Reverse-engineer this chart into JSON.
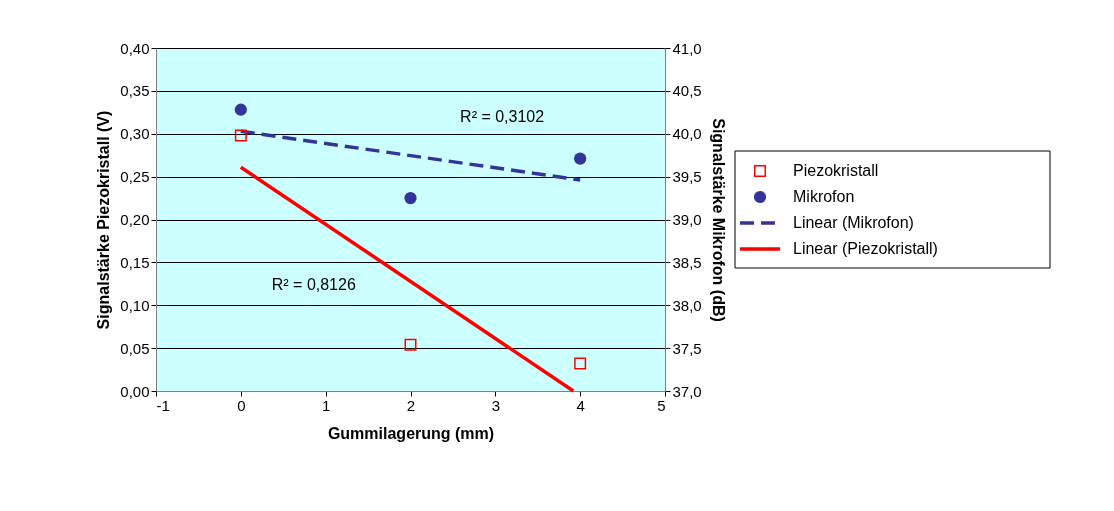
{
  "chart_data": {
    "type": "scatter",
    "xlabel": "Gummilagerung (mm)",
    "ylabel": "Signalstärke Piezokristall (V)",
    "y2label": "Signalstärke Mikrofon (dB)",
    "xlim": [
      -1,
      5
    ],
    "xticks": [
      -1,
      0,
      1,
      2,
      3,
      4,
      5
    ],
    "ylim": [
      0,
      0.4
    ],
    "yticks": [
      {
        "value": 0,
        "label": "0,00"
      },
      {
        "value": 0.05,
        "label": "0,05"
      },
      {
        "value": 0.1,
        "label": "0,10"
      },
      {
        "value": 0.15,
        "label": "0,15"
      },
      {
        "value": 0.2,
        "label": "0,20"
      },
      {
        "value": 0.25,
        "label": "0,25"
      },
      {
        "value": 0.3,
        "label": "0,30"
      },
      {
        "value": 0.35,
        "label": "0,35"
      },
      {
        "value": 0.4,
        "label": "0,40"
      }
    ],
    "y2lim": [
      37,
      41
    ],
    "y2ticks": [
      {
        "value": 37,
        "label": "37,0"
      },
      {
        "value": 37.5,
        "label": "37,5"
      },
      {
        "value": 38,
        "label": "38,0"
      },
      {
        "value": 38.5,
        "label": "38,5"
      },
      {
        "value": 39,
        "label": "39,0"
      },
      {
        "value": 39.5,
        "label": "39,5"
      },
      {
        "value": 40,
        "label": "40,0"
      },
      {
        "value": 40.5,
        "label": "40,5"
      },
      {
        "value": 41,
        "label": "41,0"
      }
    ],
    "grid": "y",
    "legend": "right",
    "series": [
      {
        "name": "Piezokristall",
        "marker": "square",
        "color": "#ff0000",
        "x": [
          0,
          2,
          4
        ],
        "values": [
          0.298,
          0.054,
          0.032
        ]
      },
      {
        "name": "Mikrofon",
        "marker": "circle",
        "color": "#333399",
        "axis": "y2",
        "x": [
          0,
          2,
          4
        ],
        "values": [
          40.28,
          39.25,
          39.71
        ]
      },
      {
        "name": "Linear (Mikrofon)",
        "type": "line",
        "line_style": "dashed",
        "color": "#333399",
        "axis": "y2",
        "x": [
          0,
          4
        ],
        "values": [
          40.03,
          39.46
        ]
      },
      {
        "name": "Linear (Piezokristall)",
        "type": "line",
        "line_style": "solid",
        "color": "#ff0000",
        "x": [
          0,
          3.92
        ],
        "values": [
          0.261,
          0
        ]
      }
    ],
    "annotations": [
      "R² = 0,3102",
      "R² = 0,8126"
    ]
  }
}
